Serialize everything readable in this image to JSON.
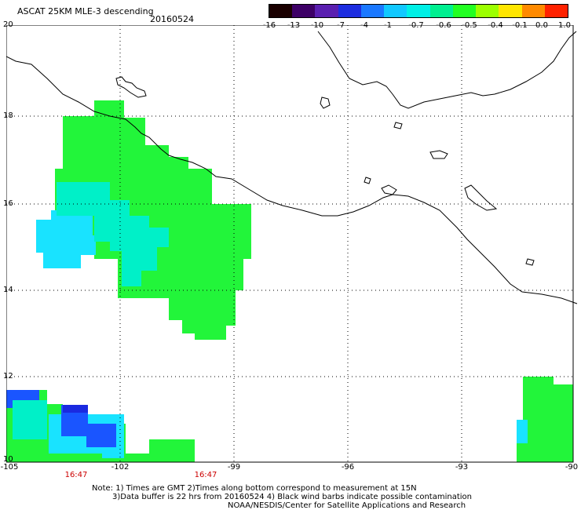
{
  "header": {
    "title": "ASCAT 25KM MLE-3 descending",
    "date": "20160524"
  },
  "legend": {
    "labels": [
      "-16",
      "-13",
      "-10",
      "-7",
      "-4",
      "-1",
      "-0.7",
      "-0.6",
      "-0.5",
      "-0.4",
      "-0.1",
      "0.0",
      "1.0"
    ],
    "colors": [
      "#1a0000",
      "#3d0066",
      "#5a1fb0",
      "#1d2de0",
      "#1a78ff",
      "#11c8ff",
      "#00f0e6",
      "#00f090",
      "#22ff22",
      "#9cff00",
      "#ffe600",
      "#ff8a00",
      "#ff2200"
    ]
  },
  "axes": {
    "lat_labels": [
      "20",
      "18",
      "16",
      "14",
      "12",
      "10"
    ],
    "lon_labels": [
      "-105",
      "-102",
      "-99",
      "-96",
      "-93",
      "-90"
    ],
    "time_labels": [
      "16:47",
      "16:47"
    ]
  },
  "notes": {
    "line1": "Note: 1) Times are GMT 2)Times along bottom correspond to measurement at 15N",
    "line2": "3)Data buffer is 22 hrs from 20160524 4) Black wind barbs indicate possible contamination",
    "line3": "NOAA/NESDIS/Center for Satellite Applications and Research"
  },
  "colors": {
    "green": "#22f53a",
    "cyan": "#19e3ff",
    "aqua": "#00f0c8",
    "blue": "#1a55ff",
    "darkblue": "#1a2ae0",
    "coast": "#000000"
  }
}
